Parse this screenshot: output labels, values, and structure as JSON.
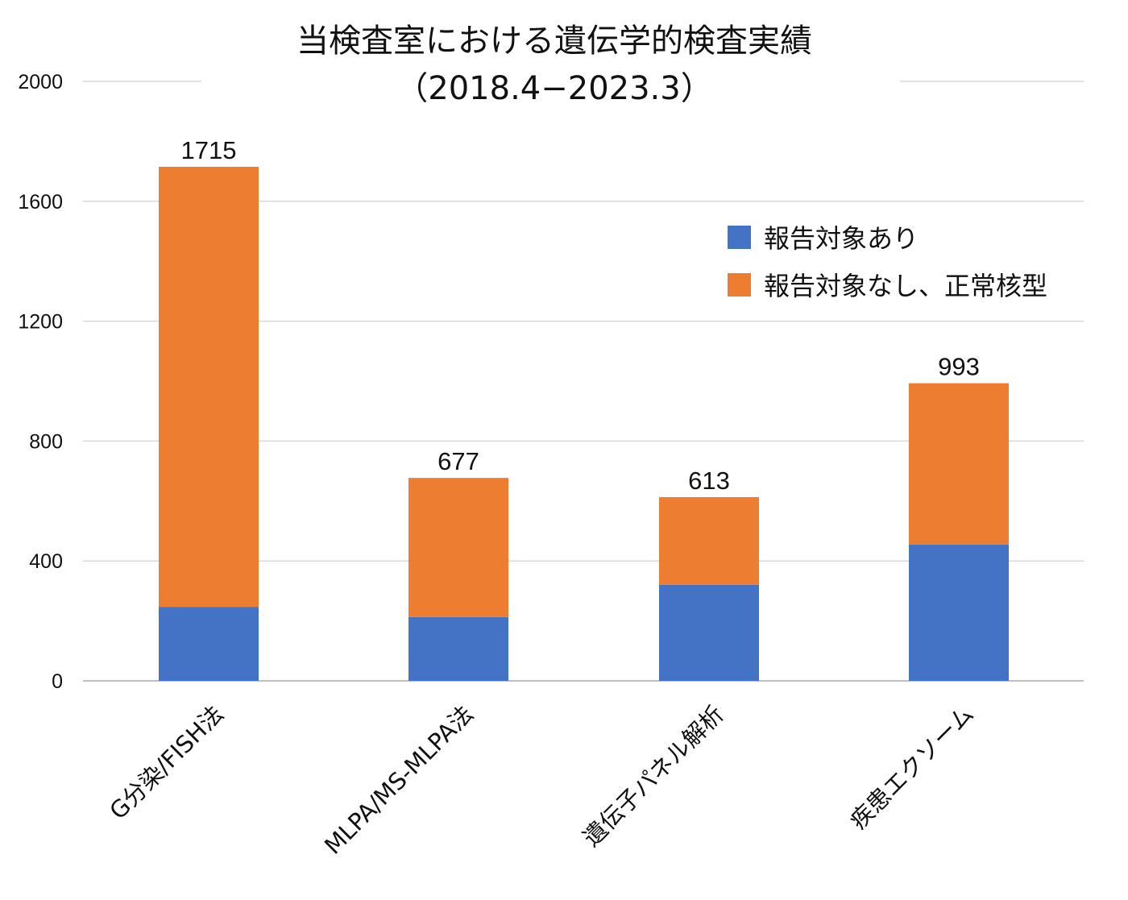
{
  "chart_data": {
    "type": "bar",
    "stacked": true,
    "title": "当検査室における遺伝学的検査実績",
    "subtitle": "（2018.4−2023.3）",
    "categories": [
      "G分染/FISH法",
      "MLPA/MS-MLPA法",
      "遺伝子パネル解析",
      "疾患エクソーム"
    ],
    "series": [
      {
        "name": "報告対象あり",
        "color": "#4472C4",
        "values": [
          247,
          213,
          320,
          455
        ]
      },
      {
        "name": "報告対象なし、正常核型",
        "color": "#ED7D31",
        "values": [
          1468,
          464,
          293,
          538
        ]
      }
    ],
    "totals": [
      1715,
      677,
      613,
      993
    ],
    "total_labels": [
      "1715",
      "677",
      "613",
      "993"
    ],
    "ylim": [
      0,
      2000
    ],
    "yticks": [
      0,
      400,
      800,
      1200,
      1600,
      2000
    ],
    "ytick_labels": [
      "0",
      "400",
      "800",
      "1200",
      "1600",
      "2000"
    ],
    "grid": true,
    "legend_position": "top-right",
    "gridline_color": "#D9D9D9",
    "axis_color": "#BFBFBF"
  }
}
